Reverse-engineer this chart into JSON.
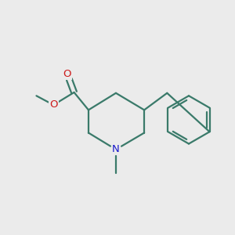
{
  "background_color": "#ebebeb",
  "bond_color": "#3a7a6a",
  "nitrogen_color": "#1a1acc",
  "oxygen_color": "#cc1a1a",
  "line_width": 1.6,
  "dbo": 0.12,
  "label_fontsize": 9.5,
  "figsize": [
    3.0,
    3.0
  ],
  "dpi": 100,
  "xlim": [
    0,
    10
  ],
  "ylim": [
    0,
    10
  ]
}
